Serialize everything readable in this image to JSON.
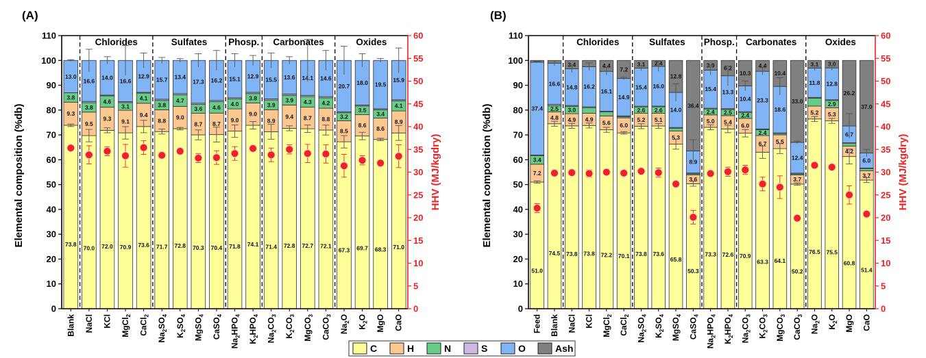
{
  "legend": [
    {
      "label": "C",
      "color": "#ffff99"
    },
    {
      "label": "H",
      "color": "#fcc890"
    },
    {
      "label": "N",
      "color": "#66cc88"
    },
    {
      "label": "S",
      "color": "#cdb8e3"
    },
    {
      "label": "O",
      "color": "#80b4f4"
    },
    {
      "label": "Ash",
      "color": "#808080"
    }
  ],
  "marker_color": "#ee2222",
  "chart_data": [
    {
      "type": "bar",
      "stacked": true,
      "panel_label": "(A)",
      "ylabel": "Elemental composition (%db)",
      "y2label": "HHV (MJ/kgdry)",
      "ylim": [
        0,
        110
      ],
      "y2lim": [
        0,
        60
      ],
      "yticks": [
        "0",
        "10",
        "20",
        "30",
        "40",
        "50",
        "60",
        "70",
        "80",
        "90",
        "100",
        "110"
      ],
      "y2ticks": [
        "0",
        "5",
        "10",
        "15",
        "20",
        "25",
        "30",
        "35",
        "40",
        "45",
        "50",
        "55",
        "60"
      ],
      "categories": [
        "Blank",
        "NaCl",
        "KCl",
        "MgCl2",
        "CaCl2",
        "Na2SO4",
        "K2SO4",
        "MgSO4",
        "CaSO4",
        "Na2HPO4",
        "K2HPO4",
        "Na2CO3",
        "K2CO3",
        "MgCO3",
        "CaCO3",
        "Na2O",
        "K2O",
        "MgO",
        "CaO"
      ],
      "groups": [
        {
          "label": "Chlorides",
          "start": 1,
          "end": 4
        },
        {
          "label": "Sulfates",
          "start": 5,
          "end": 8
        },
        {
          "label": "Phosp.",
          "start": 9,
          "end": 10
        },
        {
          "label": "Carbonates",
          "start": 11,
          "end": 14
        },
        {
          "label": "Oxides",
          "start": 15,
          "end": 18
        }
      ],
      "series": [
        {
          "name": "C",
          "values": [
            73.8,
            70.0,
            72.0,
            70.9,
            73.6,
            71.7,
            72.8,
            70.3,
            70.4,
            71.8,
            74.1,
            71.4,
            72.8,
            72.7,
            72.1,
            67.3,
            69.7,
            68.3,
            71.0
          ],
          "labels": [
            "73.8",
            "70.0",
            "72.0",
            "70.9",
            "73.6",
            "71.7",
            "72.8",
            "70.3",
            "70.4",
            "71.8",
            "74.1",
            "71.4",
            "72.8",
            "72.7",
            "72.1",
            "67.3",
            "69.7",
            "68.3",
            "71.0"
          ]
        },
        {
          "name": "H",
          "values": [
            9.3,
            9.5,
            9.3,
            9.1,
            9.4,
            8.8,
            9.0,
            8.7,
            8.7,
            9.0,
            9.0,
            8.9,
            9.4,
            8.7,
            8.8,
            8.5,
            8.6,
            8.6,
            8.9
          ],
          "labels": [
            "9.3",
            "9.5",
            "9.3",
            "9.1",
            "9.4",
            "8.8",
            "9.0",
            "8.7",
            "8.7",
            "9.0",
            "9.0",
            "8.9",
            "9.4",
            "8.7",
            "8.8",
            "8.5",
            "8.6",
            "8.6",
            "8.9"
          ]
        },
        {
          "name": "N",
          "values": [
            3.8,
            3.8,
            4.6,
            3.1,
            4.1,
            3.8,
            4.7,
            3.6,
            4.6,
            4.0,
            3.8,
            3.9,
            3.9,
            4.3,
            4.2,
            3.2,
            3.5,
            3.4,
            4.1
          ],
          "labels": [
            "3.8",
            "3.8",
            "4.6",
            "3.1",
            "4.1",
            "3.8",
            "4.7",
            "3.6",
            "4.6",
            "4.0",
            "3.8",
            "3.9",
            "3.9",
            "4.3",
            "4.2",
            "3.2",
            "3.5",
            "3.4",
            "4.1"
          ]
        },
        {
          "name": "S",
          "values": [
            0,
            0.5,
            0.3,
            0.4,
            0.3,
            0.5,
            0.5,
            0.5,
            0.5,
            0.5,
            0.5,
            0.5,
            0.5,
            0.5,
            0.5,
            0.4,
            0.4,
            0.4,
            0.4
          ],
          "labels": []
        },
        {
          "name": "O",
          "values": [
            13.0,
            16.6,
            14.0,
            16.6,
            12.9,
            15.7,
            13.4,
            17.3,
            16.2,
            15.1,
            12.9,
            15.5,
            13.6,
            14.1,
            14.6,
            20.7,
            18.0,
            19.5,
            15.9
          ],
          "labels": [
            "13.0",
            "16.6",
            "14.0",
            "16.6",
            "12.9",
            "15.7",
            "13.4",
            "17.3",
            "16.2",
            "15.1",
            "12.9",
            "15.5",
            "13.6",
            "14.1",
            "14.6",
            "20.7",
            "18.0",
            "19.5",
            "15.9"
          ]
        },
        {
          "name": "Ash",
          "values": [
            0,
            0,
            0,
            0,
            0,
            0,
            0,
            0,
            0,
            0,
            0,
            0,
            0,
            0,
            0,
            0,
            0,
            0,
            0
          ],
          "labels": []
        }
      ],
      "c_errors": [
        0.5,
        2.5,
        1.0,
        2.5,
        2.5,
        1.0,
        0.5,
        2.0,
        3.0,
        2.5,
        1.5,
        3.0,
        1.0,
        1.5,
        2.0,
        2.5,
        1.5,
        0.5,
        3.0
      ],
      "top_errors": [
        0.3,
        4.5,
        1.5,
        6.0,
        3.0,
        1.2,
        0.7,
        2.7,
        4.0,
        2.7,
        2.0,
        3.0,
        1.5,
        8.5,
        4.0,
        5.7,
        2.7,
        0.8,
        5.0
      ],
      "hhv": [
        35.3,
        33.8,
        34.6,
        33.6,
        35.4,
        33.7,
        34.6,
        33.1,
        33.2,
        34.1,
        35.2,
        33.8,
        35.0,
        34.1,
        34.0,
        31.4,
        32.6,
        32.0,
        33.5
      ],
      "hhv_err": [
        0,
        2.0,
        1.0,
        2.5,
        1.5,
        0.5,
        0.5,
        1.0,
        1.5,
        1.5,
        0.5,
        1.5,
        1.0,
        2.0,
        2.0,
        2.5,
        1.0,
        0.5,
        2.5
      ]
    },
    {
      "type": "bar",
      "stacked": true,
      "panel_label": "(B)",
      "ylabel": "Elemental composition (%db)",
      "y2label": "HHV (MJ/kgdry)",
      "ylim": [
        0,
        110
      ],
      "y2lim": [
        0,
        60
      ],
      "yticks": [
        "0",
        "10",
        "20",
        "30",
        "40",
        "50",
        "60",
        "70",
        "80",
        "90",
        "100",
        "110"
      ],
      "y2ticks": [
        "0",
        "5",
        "10",
        "15",
        "20",
        "25",
        "30",
        "35",
        "40",
        "45",
        "50",
        "55",
        "60"
      ],
      "categories": [
        "Feed",
        "Blank",
        "NaCl",
        "KCl",
        "MgCl2",
        "CaCl2",
        "Na2SO4",
        "K2SO4",
        "MgSO4",
        "CaSO4",
        "Na2HPO4",
        "K2HPO4",
        "Na2CO3",
        "K2CO3",
        "MgCO3",
        "CaCO3",
        "Na2O",
        "K2O",
        "MgO",
        "CaO"
      ],
      "groups": [
        {
          "label": "Chlorides",
          "start": 2,
          "end": 5
        },
        {
          "label": "Sulfates",
          "start": 6,
          "end": 9
        },
        {
          "label": "Phosp.",
          "start": 10,
          "end": 11
        },
        {
          "label": "Carbonates",
          "start": 12,
          "end": 15
        },
        {
          "label": "Oxides",
          "start": 16,
          "end": 19
        }
      ],
      "series": [
        {
          "name": "C",
          "values": [
            51.0,
            74.5,
            73.8,
            73.8,
            72.2,
            70.1,
            73.8,
            73.6,
            65.8,
            50.3,
            73.3,
            72.6,
            70.9,
            63.3,
            64.1,
            50.2,
            76.5,
            75.5,
            60.8,
            51.4
          ],
          "labels": [
            "51.0",
            "74.5",
            "73.8",
            "73.8",
            "72.2",
            "70.1",
            "73.8",
            "73.6",
            "65.8",
            "50.3",
            "73.3",
            "72.6",
            "70.9",
            "63.3",
            "64.1",
            "50.2",
            "76.5",
            "75.5",
            "60.8",
            "51.4"
          ]
        },
        {
          "name": "H",
          "values": [
            7.2,
            4.8,
            4.9,
            4.9,
            5.6,
            6.0,
            5.2,
            5.1,
            5.3,
            3.6,
            5.0,
            5.4,
            6.0,
            6.7,
            5.5,
            3.7,
            5.2,
            5.3,
            4.2,
            3.7
          ],
          "labels": [
            "7.2",
            "4.8",
            "4.9",
            "4.9",
            "5.6",
            "6.0",
            "5.2",
            "5.1",
            "5.3",
            "3.6",
            "5.0",
            "5.4",
            "6.0",
            "6.7",
            "5.5",
            "3.7",
            "5.2",
            "5.3",
            "4.2",
            "3.7"
          ]
        },
        {
          "name": "N",
          "values": [
            3.4,
            2.5,
            3.0,
            2.3,
            1.6,
            0.5,
            2.6,
            2.6,
            1.1,
            0.4,
            2.4,
            2.5,
            2.4,
            2.4,
            0.5,
            0.4,
            3.2,
            2.9,
            1.0,
            0.8
          ],
          "labels": [
            "3.4",
            "2.5",
            "3.0",
            "",
            "",
            "",
            "2.6",
            "2.6",
            "",
            "",
            "2.4",
            "2.5",
            "2.4",
            "2.4",
            "",
            "",
            "",
            "2.9",
            "",
            ""
          ]
        },
        {
          "name": "S",
          "values": [
            0.3,
            0.5,
            0.3,
            0.3,
            0.3,
            0.3,
            0.3,
            0.3,
            0.3,
            0.3,
            0.3,
            0.3,
            0.3,
            0.3,
            0.3,
            0.3,
            0.3,
            0.3,
            0.3,
            0.3
          ],
          "labels": []
        },
        {
          "name": "O",
          "values": [
            37.4,
            16.6,
            14.8,
            16.2,
            16.1,
            14.9,
            15.4,
            16.0,
            14.0,
            8.9,
            15.4,
            13.3,
            10.4,
            23.3,
            18.6,
            12.4,
            11.8,
            12.8,
            6.7,
            6.0
          ],
          "labels": [
            "37.4",
            "16.6",
            "14.8",
            "16.2",
            "16.1",
            "14.9",
            "15.4",
            "16.0",
            "14.0",
            "8.9",
            "15.4",
            "13.3",
            "10.4",
            "23.3",
            "18.6",
            "12.4",
            "11.8",
            "12.8",
            "6.7",
            "6.0"
          ]
        },
        {
          "name": "Ash",
          "values": [
            0.7,
            1.1,
            3.4,
            2.5,
            4.4,
            7.2,
            3.1,
            2.4,
            12.8,
            36.4,
            3.9,
            6.2,
            10.3,
            4.4,
            10.4,
            33.0,
            3.1,
            3.0,
            26.2,
            37.0
          ],
          "labels": [
            "",
            "",
            "3.4",
            "",
            "4.4",
            "7.2",
            "3.1",
            "2.4",
            "12.8",
            "36.4",
            "3.9",
            "6.2",
            "10.3",
            "4.4",
            "10.4",
            "33.0",
            "3.1",
            "3.0",
            "26.2",
            "37.0"
          ]
        }
      ],
      "c_errors": [
        0.5,
        1.0,
        1.0,
        1.0,
        1.0,
        0.5,
        1.0,
        1.0,
        2.0,
        1.0,
        1.0,
        1.5,
        1.5,
        2.5,
        2.0,
        0.5,
        1.0,
        1.0,
        3.0,
        1.0
      ],
      "top_errors": [
        0.3,
        1.0,
        1.5,
        1.5,
        1.5,
        0.5,
        1.0,
        2.0,
        3.5,
        4.5,
        2.0,
        4.0,
        2.0,
        1.5,
        3.5,
        0.5,
        1.0,
        1.0,
        5.0,
        1.5
      ],
      "hhv": [
        22.1,
        29.8,
        29.9,
        29.7,
        30.0,
        29.8,
        30.2,
        29.9,
        27.4,
        20.1,
        29.7,
        30.1,
        30.5,
        27.4,
        26.7,
        19.9,
        31.5,
        31.1,
        25.0,
        20.8
      ],
      "hhv_err": [
        1.0,
        0.5,
        0.5,
        0.8,
        0.5,
        0.5,
        0.5,
        1.0,
        0.5,
        1.5,
        0.5,
        1.0,
        1.0,
        1.5,
        2.5,
        0.5,
        0.5,
        0.5,
        2.0,
        0.5
      ]
    }
  ]
}
